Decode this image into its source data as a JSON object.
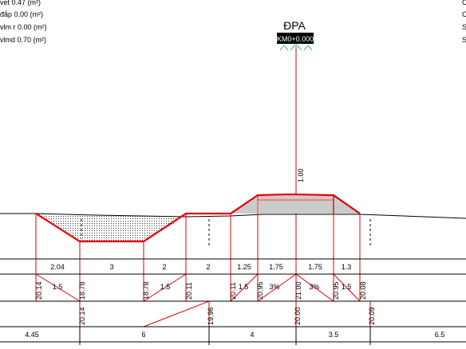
{
  "legend": [
    "vet 0.47 (m²)",
    "đắp 0.00 (m²)",
    "vlm r 0.00 (m²)",
    "vlmd 0.70 (m²)"
  ],
  "right_marks": [
    "C",
    "C",
    "S",
    "S"
  ],
  "station_name": "ĐPA",
  "station_chainage": "KM0+0.000",
  "center_height_label": "1.00",
  "offset_distances": [
    "2.04",
    "3",
    "2",
    "2",
    "1.25",
    "1.75",
    "1.75",
    "1.3"
  ],
  "design_elevations": [
    "20.14",
    "18.78",
    "18.78",
    "20.11",
    "20.11",
    "20.95",
    "21.00",
    "20.95",
    "20.08"
  ],
  "slope_labels": [
    "1.5",
    "1.5",
    "1.5",
    "3%",
    "3%",
    "1.5"
  ],
  "natural_elevations": [
    "20.14",
    "19.96",
    "20.00",
    "20.09"
  ],
  "natural_distances": [
    "4.45",
    "6",
    "4",
    "3.5",
    "6.5"
  ],
  "colors": {
    "design_line": "#e00000",
    "leader_line": "#e00000",
    "ground_line": "#000000",
    "label_box": "#000000",
    "label_text": "#ffffff",
    "marker_teal": "#40b0a0"
  }
}
